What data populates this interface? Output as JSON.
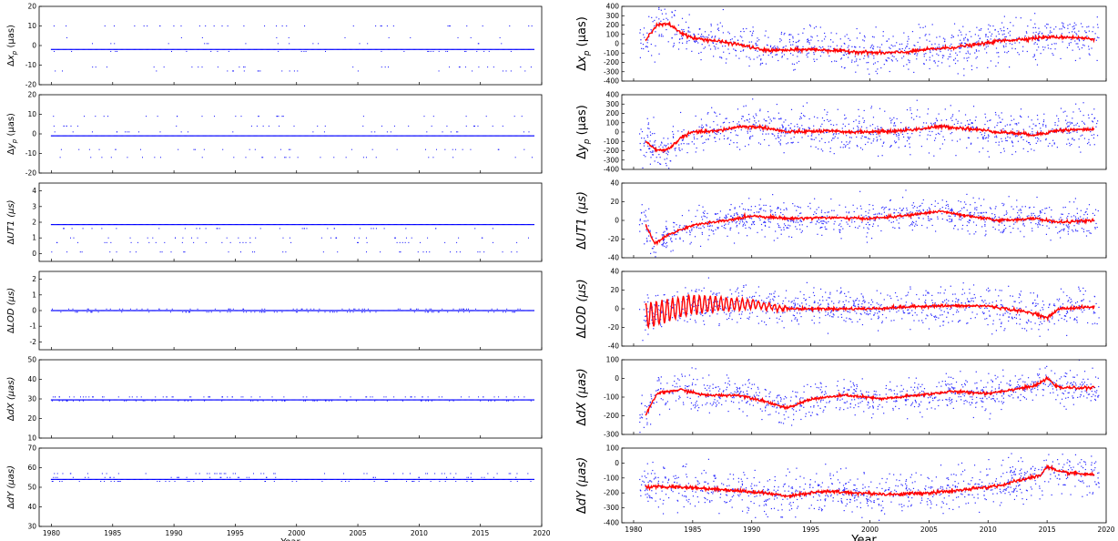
{
  "chart_data": [
    {
      "type": "scatter",
      "panel": "left",
      "xlabel": "Year",
      "xlim": [
        1979,
        2020
      ],
      "xticks": [
        1980,
        1985,
        1990,
        1995,
        2000,
        2005,
        2010,
        2015,
        2020
      ],
      "subplots": [
        {
          "ylabel": "Δx_p (μas)",
          "ylim": [
            -20,
            20
          ],
          "yticks": [
            -20,
            -10,
            0,
            10,
            20
          ],
          "level": -2,
          "alt_levels": [
            1,
            -3,
            -13,
            -11,
            10,
            4
          ],
          "series_color": "#0000ff"
        },
        {
          "ylabel": "Δy_p (μas)",
          "ylim": [
            -20,
            20
          ],
          "yticks": [
            -20,
            -10,
            0,
            10,
            20
          ],
          "level": -1,
          "alt_levels": [
            1,
            9,
            4,
            -8,
            -12
          ],
          "series_color": "#0000ff"
        },
        {
          "ylabel": "ΔUT1 (μs)",
          "ylim": [
            -0.5,
            4.5
          ],
          "yticks": [
            0,
            1,
            2,
            3,
            4
          ],
          "level": 1.85,
          "alt_levels": [
            1.6,
            1.0,
            0.1,
            0.7
          ],
          "series_color": "#0000ff"
        },
        {
          "ylabel": "ΔLOD (μs)",
          "ylim": [
            -2.5,
            2.5
          ],
          "yticks": [
            -2,
            -1,
            0,
            1,
            2
          ],
          "level": 0.0,
          "alt_levels": [
            0.1,
            -0.1
          ],
          "series_color": "#0000ff"
        },
        {
          "ylabel": "ΔdX (μas)",
          "ylim": [
            10,
            50
          ],
          "yticks": [
            10,
            20,
            30,
            40,
            50
          ],
          "level": 29.5,
          "alt_levels": [
            29,
            31
          ],
          "series_color": "#0000ff"
        },
        {
          "ylabel": "ΔdY (μas)",
          "ylim": [
            30,
            70
          ],
          "yticks": [
            30,
            40,
            50,
            60,
            70
          ],
          "level": 54,
          "alt_levels": [
            53,
            55,
            57
          ],
          "series_color": "#0000ff"
        }
      ]
    },
    {
      "type": "scatter",
      "panel": "right",
      "xlabel": "Year",
      "xlim": [
        1979,
        2020
      ],
      "xticks": [
        1980,
        1985,
        1990,
        1995,
        2000,
        2005,
        2010,
        2015,
        2020
      ],
      "subplots": [
        {
          "ylabel": "Δx_p (μas)",
          "ylim": [
            -400,
            400
          ],
          "yticks": [
            -400,
            -300,
            -200,
            -100,
            0,
            100,
            200,
            300,
            400
          ],
          "noise": 110,
          "trend": [
            [
              1981,
              50
            ],
            [
              1982,
              200
            ],
            [
              1983,
              210
            ],
            [
              1984,
              120
            ],
            [
              1985,
              60
            ],
            [
              1987,
              30
            ],
            [
              1989,
              -10
            ],
            [
              1991,
              -70
            ],
            [
              1993,
              -70
            ],
            [
              1995,
              -60
            ],
            [
              1998,
              -80
            ],
            [
              2001,
              -100
            ],
            [
              2003,
              -90
            ],
            [
              2005,
              -60
            ],
            [
              2007,
              -40
            ],
            [
              2009,
              -10
            ],
            [
              2011,
              30
            ],
            [
              2013,
              50
            ],
            [
              2015,
              70
            ],
            [
              2017,
              70
            ],
            [
              2019,
              50
            ]
          ]
        },
        {
          "ylabel": "Δy_p (μas)",
          "ylim": [
            -400,
            400
          ],
          "yticks": [
            -400,
            -300,
            -200,
            -100,
            0,
            100,
            200,
            300,
            400
          ],
          "noise": 110,
          "trend": [
            [
              1981,
              -100
            ],
            [
              1982,
              -200
            ],
            [
              1983,
              -180
            ],
            [
              1984,
              -60
            ],
            [
              1985,
              0
            ],
            [
              1987,
              10
            ],
            [
              1989,
              60
            ],
            [
              1991,
              50
            ],
            [
              1993,
              0
            ],
            [
              1996,
              10
            ],
            [
              1999,
              0
            ],
            [
              2002,
              10
            ],
            [
              2004,
              30
            ],
            [
              2006,
              60
            ],
            [
              2008,
              40
            ],
            [
              2011,
              0
            ],
            [
              2014,
              -30
            ],
            [
              2016,
              20
            ],
            [
              2019,
              30
            ]
          ]
        },
        {
          "ylabel": "ΔUT1 (μs)",
          "ylim": [
            -40,
            40
          ],
          "yticks": [
            -40,
            -20,
            0,
            20,
            40
          ],
          "noise": 9,
          "trend": [
            [
              1981,
              -5
            ],
            [
              1981.8,
              -25
            ],
            [
              1983,
              -15
            ],
            [
              1985,
              -5
            ],
            [
              1988,
              0
            ],
            [
              1990,
              5
            ],
            [
              1993,
              2
            ],
            [
              1996,
              3
            ],
            [
              2000,
              2
            ],
            [
              2003,
              5
            ],
            [
              2006,
              10
            ],
            [
              2008,
              5
            ],
            [
              2011,
              0
            ],
            [
              2014,
              2
            ],
            [
              2016,
              -2
            ],
            [
              2019,
              0
            ]
          ]
        },
        {
          "ylabel": "ΔLOD (μs)",
          "ylim": [
            -40,
            40
          ],
          "yticks": [
            -40,
            -20,
            0,
            20,
            40
          ],
          "noise": 10,
          "oscillation": 14,
          "trend": [
            [
              1981,
              -8
            ],
            [
              1985,
              5
            ],
            [
              1990,
              5
            ],
            [
              1993,
              0
            ],
            [
              2000,
              0
            ],
            [
              2005,
              3
            ],
            [
              2010,
              3
            ],
            [
              2014,
              -5
            ],
            [
              2015,
              -10
            ],
            [
              2016,
              0
            ],
            [
              2019,
              2
            ]
          ]
        },
        {
          "ylabel": "ΔdX (μas)",
          "ylim": [
            -300,
            100
          ],
          "yticks": [
            -300,
            -200,
            -100,
            0,
            100
          ],
          "noise": 45,
          "trend": [
            [
              1981,
              -200
            ],
            [
              1982,
              -80
            ],
            [
              1984,
              -60
            ],
            [
              1986,
              -90
            ],
            [
              1989,
              -90
            ],
            [
              1991,
              -120
            ],
            [
              1993,
              -160
            ],
            [
              1995,
              -110
            ],
            [
              1998,
              -90
            ],
            [
              2001,
              -110
            ],
            [
              2004,
              -90
            ],
            [
              2007,
              -70
            ],
            [
              2010,
              -80
            ],
            [
              2012,
              -60
            ],
            [
              2014,
              -40
            ],
            [
              2015,
              0
            ],
            [
              2016,
              -50
            ],
            [
              2019,
              -50
            ]
          ]
        },
        {
          "ylabel": "ΔdY (μas)",
          "ylim": [
            -400,
            100
          ],
          "yticks": [
            -400,
            -300,
            -200,
            -100,
            0,
            100
          ],
          "noise": 70,
          "trend": [
            [
              1981,
              -160
            ],
            [
              1984,
              -160
            ],
            [
              1988,
              -180
            ],
            [
              1991,
              -200
            ],
            [
              1993,
              -220
            ],
            [
              1996,
              -190
            ],
            [
              1999,
              -200
            ],
            [
              2002,
              -210
            ],
            [
              2005,
              -200
            ],
            [
              2008,
              -180
            ],
            [
              2011,
              -150
            ],
            [
              2013,
              -110
            ],
            [
              2014.5,
              -80
            ],
            [
              2015,
              -20
            ],
            [
              2016,
              -60
            ],
            [
              2019,
              -80
            ]
          ]
        }
      ]
    }
  ]
}
